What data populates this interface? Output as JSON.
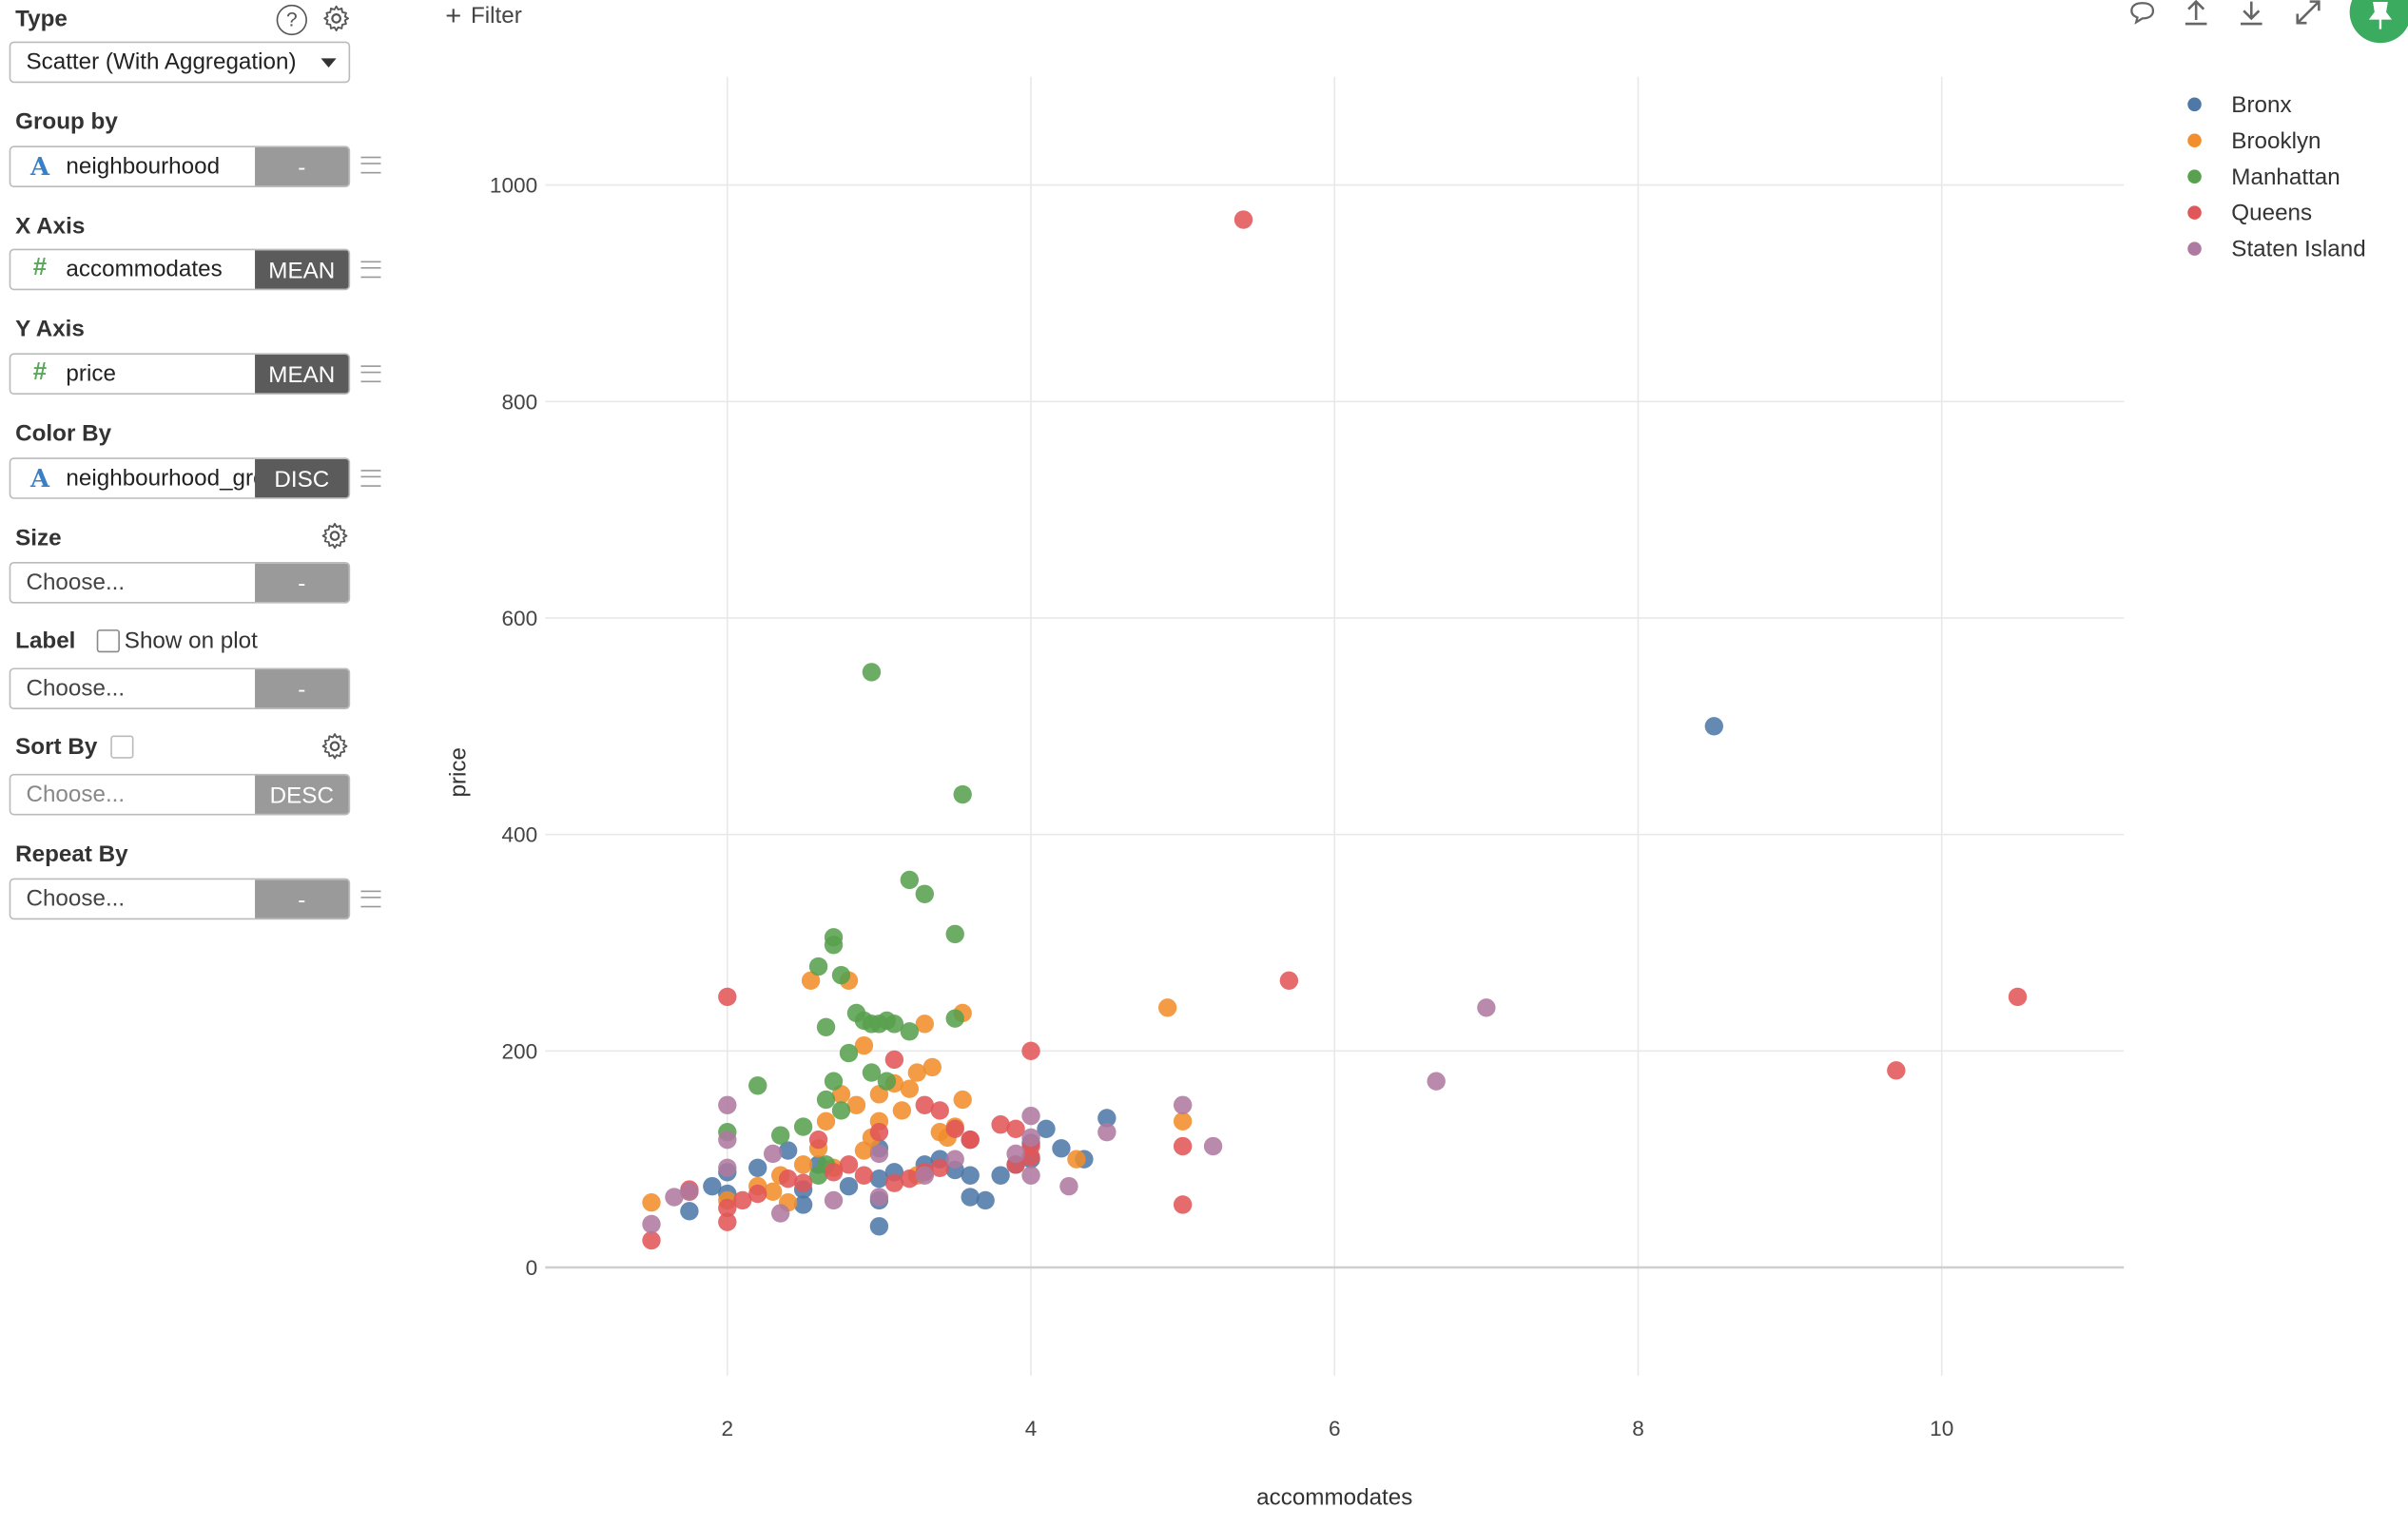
{
  "sidebar": {
    "type": {
      "label": "Type",
      "help_glyph": "?",
      "value": "Scatter (With Aggregation)"
    },
    "group_by": {
      "label": "Group by",
      "field": "neighbourhood",
      "agg": "-"
    },
    "x_axis": {
      "label": "X Axis",
      "field": "accommodates",
      "agg": "MEAN"
    },
    "y_axis": {
      "label": "Y Axis",
      "field": "price",
      "agg": "MEAN"
    },
    "color_by": {
      "label": "Color By",
      "field": "neighbourhood_group",
      "agg": "DISC"
    },
    "size": {
      "label": "Size",
      "placeholder": "Choose...",
      "agg": "-"
    },
    "label": {
      "label": "Label",
      "checkbox_label": "Show on plot",
      "placeholder": "Choose...",
      "agg": "-"
    },
    "sort_by": {
      "label": "Sort By",
      "placeholder": "Choose...",
      "agg": "DESC"
    },
    "repeat_by": {
      "label": "Repeat By",
      "placeholder": "Choose...",
      "agg": "-"
    }
  },
  "toolbar": {
    "filter_label": "Filter",
    "icons": [
      "comment-icon",
      "upload-icon",
      "download-icon",
      "expand-icon",
      "pin-icon"
    ]
  },
  "chart_data": {
    "type": "scatter",
    "xlabel": "accommodates",
    "ylabel": "price",
    "xlim": [
      0.8,
      11.2
    ],
    "ylim": [
      -100,
      1100
    ],
    "xticks": [
      2,
      4,
      6,
      8,
      10
    ],
    "yticks": [
      0,
      200,
      400,
      600,
      800,
      1000
    ],
    "grid": true,
    "legend_position": "top-right",
    "series": [
      {
        "name": "Bronx",
        "color": "#4e79a7",
        "points": [
          [
            8.5,
            500
          ],
          [
            1.9,
            75
          ],
          [
            1.75,
            52
          ],
          [
            2.0,
            68
          ],
          [
            2.0,
            88
          ],
          [
            2.2,
            92
          ],
          [
            2.4,
            108
          ],
          [
            2.5,
            58
          ],
          [
            2.5,
            72
          ],
          [
            2.6,
            95
          ],
          [
            2.8,
            75
          ],
          [
            3.0,
            38
          ],
          [
            3.0,
            62
          ],
          [
            3.0,
            82
          ],
          [
            3.0,
            110
          ],
          [
            3.1,
            88
          ],
          [
            3.3,
            95
          ],
          [
            3.4,
            100
          ],
          [
            3.5,
            90
          ],
          [
            3.6,
            65
          ],
          [
            3.6,
            85
          ],
          [
            3.7,
            62
          ],
          [
            3.8,
            85
          ],
          [
            3.9,
            95
          ],
          [
            4.0,
            100
          ],
          [
            4.0,
            115
          ],
          [
            4.1,
            128
          ],
          [
            4.2,
            110
          ],
          [
            4.35,
            100
          ],
          [
            4.5,
            138
          ]
        ]
      },
      {
        "name": "Brooklyn",
        "color": "#f28e2b",
        "points": [
          [
            1.5,
            60
          ],
          [
            1.75,
            70
          ],
          [
            2.0,
            62
          ],
          [
            2.2,
            75
          ],
          [
            2.3,
            70
          ],
          [
            2.35,
            85
          ],
          [
            2.4,
            60
          ],
          [
            2.5,
            95
          ],
          [
            2.55,
            265
          ],
          [
            2.6,
            110
          ],
          [
            2.65,
            135
          ],
          [
            2.7,
            92
          ],
          [
            2.75,
            160
          ],
          [
            2.8,
            265
          ],
          [
            2.85,
            150
          ],
          [
            2.9,
            205
          ],
          [
            2.9,
            108
          ],
          [
            2.95,
            120
          ],
          [
            3.0,
            135
          ],
          [
            3.0,
            160
          ],
          [
            3.1,
            170
          ],
          [
            3.15,
            145
          ],
          [
            3.2,
            165
          ],
          [
            3.25,
            180
          ],
          [
            3.3,
            225
          ],
          [
            3.35,
            185
          ],
          [
            3.4,
            125
          ],
          [
            3.45,
            120
          ],
          [
            3.5,
            130
          ],
          [
            3.55,
            155
          ],
          [
            3.55,
            235
          ],
          [
            3.25,
            85
          ],
          [
            4.3,
            100
          ],
          [
            4.9,
            240
          ],
          [
            5.0,
            135
          ]
        ]
      },
      {
        "name": "Manhattan",
        "color": "#59a14f",
        "points": [
          [
            2.95,
            550
          ],
          [
            3.55,
            437
          ],
          [
            3.2,
            358
          ],
          [
            3.3,
            345
          ],
          [
            3.5,
            308
          ],
          [
            2.7,
            305
          ],
          [
            2.7,
            298
          ],
          [
            2.6,
            278
          ],
          [
            2.75,
            270
          ],
          [
            2.85,
            235
          ],
          [
            2.9,
            228
          ],
          [
            2.95,
            225
          ],
          [
            3.0,
            225
          ],
          [
            3.05,
            228
          ],
          [
            3.1,
            225
          ],
          [
            3.2,
            218
          ],
          [
            3.5,
            230
          ],
          [
            2.65,
            222
          ],
          [
            2.8,
            198
          ],
          [
            2.95,
            180
          ],
          [
            3.05,
            172
          ],
          [
            2.7,
            172
          ],
          [
            2.65,
            155
          ],
          [
            2.75,
            145
          ],
          [
            2.5,
            130
          ],
          [
            2.35,
            122
          ],
          [
            2.2,
            168
          ],
          [
            2.0,
            125
          ],
          [
            2.65,
            95
          ],
          [
            2.6,
            85
          ]
        ]
      },
      {
        "name": "Queens",
        "color": "#e15759",
        "points": [
          [
            5.4,
            968
          ],
          [
            5.7,
            265
          ],
          [
            10.5,
            250
          ],
          [
            9.7,
            182
          ],
          [
            2.0,
            250
          ],
          [
            4.0,
            200
          ],
          [
            3.1,
            192
          ],
          [
            3.3,
            150
          ],
          [
            3.4,
            145
          ],
          [
            3.5,
            128
          ],
          [
            3.6,
            118
          ],
          [
            3.8,
            132
          ],
          [
            3.9,
            128
          ],
          [
            4.0,
            112
          ],
          [
            4.0,
            102
          ],
          [
            3.9,
            95
          ],
          [
            5.0,
            112
          ],
          [
            5.0,
            58
          ],
          [
            2.0,
            55
          ],
          [
            2.0,
            42
          ],
          [
            1.5,
            25
          ],
          [
            1.75,
            72
          ],
          [
            2.1,
            62
          ],
          [
            2.2,
            68
          ],
          [
            2.4,
            82
          ],
          [
            2.5,
            78
          ],
          [
            2.6,
            118
          ],
          [
            2.7,
            88
          ],
          [
            2.8,
            95
          ],
          [
            2.9,
            85
          ],
          [
            3.0,
            125
          ],
          [
            3.1,
            78
          ],
          [
            3.2,
            82
          ],
          [
            3.3,
            88
          ],
          [
            3.4,
            92
          ],
          [
            3.6,
            118
          ]
        ]
      },
      {
        "name": "Staten Island",
        "color": "#af7aa1",
        "points": [
          [
            7.0,
            240
          ],
          [
            6.67,
            172
          ],
          [
            5.2,
            112
          ],
          [
            5.0,
            150
          ],
          [
            4.5,
            125
          ],
          [
            4.25,
            75
          ],
          [
            4.0,
            85
          ],
          [
            4.0,
            120
          ],
          [
            4.0,
            140
          ],
          [
            3.9,
            105
          ],
          [
            3.5,
            100
          ],
          [
            3.3,
            85
          ],
          [
            3.0,
            65
          ],
          [
            3.0,
            105
          ],
          [
            2.7,
            62
          ],
          [
            2.35,
            50
          ],
          [
            2.3,
            105
          ],
          [
            2.0,
            150
          ],
          [
            2.0,
            118
          ],
          [
            2.0,
            92
          ],
          [
            1.75,
            70
          ],
          [
            1.65,
            65
          ],
          [
            1.5,
            40
          ]
        ]
      }
    ]
  }
}
